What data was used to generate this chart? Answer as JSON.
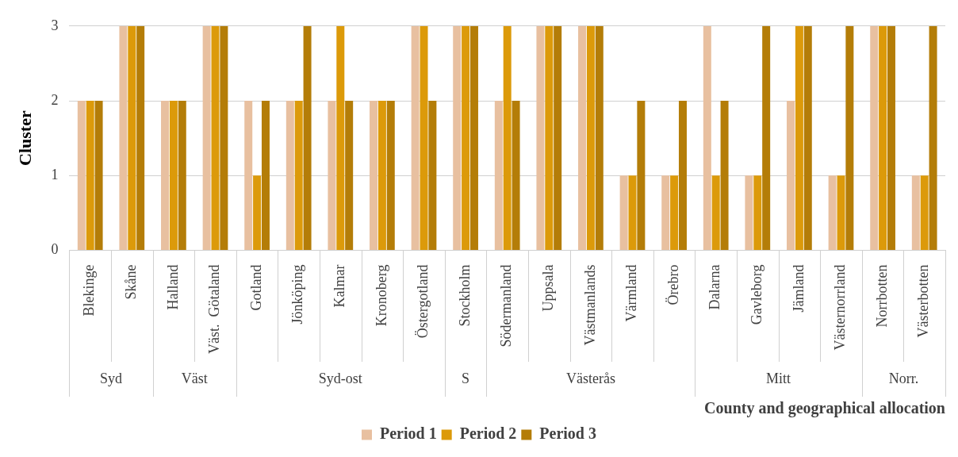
{
  "chart_data": {
    "type": "bar",
    "xlabel": "County and geographical allocation",
    "ylabel": "Cluster",
    "categories": [
      "Blekinge",
      "Skåne",
      "Halland",
      "Väst.  Götaland",
      "Gotland",
      "Jönköping",
      "Kalmar",
      "Kronoberg",
      "Östergotland",
      "Stockholm",
      "Södermanland",
      "Uppsala",
      "Västmanlands",
      "Värmland",
      "Örebro",
      "Dalarna",
      "Gavleborg",
      "Jämland",
      "Västernorrland",
      "Norrbotten",
      "Västerbotten"
    ],
    "series": [
      {
        "name": "Period 1",
        "color": "#e8c0a0",
        "values": [
          2,
          3,
          2,
          3,
          2,
          2,
          2,
          2,
          3,
          3,
          2,
          3,
          3,
          1,
          1,
          3,
          1,
          2,
          1,
          3,
          1
        ]
      },
      {
        "name": "Period 2",
        "color": "#dc9a0a",
        "values": [
          2,
          3,
          2,
          3,
          1,
          2,
          3,
          2,
          3,
          3,
          3,
          3,
          3,
          1,
          1,
          1,
          1,
          3,
          1,
          3,
          1
        ]
      },
      {
        "name": "Period 3",
        "color": "#b47d08",
        "values": [
          2,
          3,
          2,
          3,
          2,
          3,
          2,
          2,
          2,
          3,
          2,
          3,
          3,
          2,
          2,
          2,
          3,
          3,
          3,
          3,
          3
        ]
      }
    ],
    "ylim": [
      0,
      3
    ],
    "yticks": [
      0,
      1,
      2,
      3
    ],
    "grid": "y",
    "legend": "bottom",
    "annotations": [
      "Syd",
      "Väst",
      "Syd-ost",
      "S",
      "Västerås",
      "Mitt",
      "Norr."
    ]
  }
}
